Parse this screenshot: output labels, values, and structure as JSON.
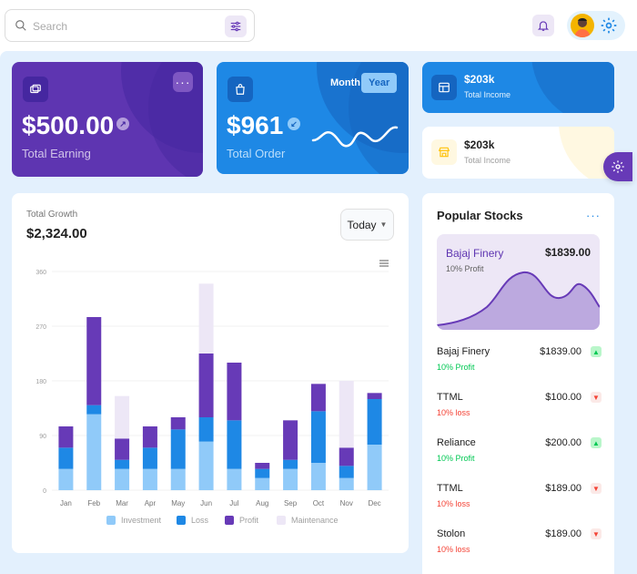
{
  "search": {
    "placeholder": "Search"
  },
  "earning": {
    "amount": "$500.00",
    "label": "Total Earning"
  },
  "order": {
    "amount": "$961",
    "label": "Total Order",
    "toggle_month": "Month",
    "toggle_year": "Year",
    "active": "Year"
  },
  "income_primary": {
    "amount": "$203k",
    "label": "Total Income"
  },
  "income_secondary": {
    "amount": "$203k",
    "label": "Total Income"
  },
  "growth": {
    "title": "Total Growth",
    "amount": "$2,324.00",
    "period_select": "Today"
  },
  "chart_data": {
    "type": "bar",
    "stacked": true,
    "categories": [
      "Jan",
      "Feb",
      "Mar",
      "Apr",
      "May",
      "Jun",
      "Jul",
      "Aug",
      "Sep",
      "Oct",
      "Nov",
      "Dec"
    ],
    "ylim": [
      0,
      360
    ],
    "yticks": [
      0,
      90,
      180,
      270,
      360
    ],
    "series": [
      {
        "name": "Investment",
        "color": "#90caf9",
        "values": [
          35,
          125,
          35,
          35,
          35,
          80,
          35,
          20,
          35,
          45,
          20,
          75
        ]
      },
      {
        "name": "Loss",
        "color": "#1e88e5",
        "values": [
          35,
          15,
          15,
          35,
          65,
          40,
          80,
          15,
          15,
          85,
          20,
          75
        ]
      },
      {
        "name": "Profit",
        "color": "#673ab7",
        "values": [
          35,
          145,
          35,
          35,
          20,
          105,
          95,
          10,
          65,
          45,
          30,
          10
        ]
      },
      {
        "name": "Maintenance",
        "color": "#ede7f6",
        "values": [
          0,
          0,
          70,
          0,
          0,
          115,
          0,
          0,
          0,
          0,
          110,
          0
        ]
      }
    ]
  },
  "stocks": {
    "title": "Popular Stocks",
    "hero": {
      "name": "Bajaj Finery",
      "price": "$1839.00",
      "sub": "10% Profit"
    },
    "rows": [
      {
        "name": "Bajaj Finery",
        "price": "$1839.00",
        "change": "10% Profit",
        "trend": "up"
      },
      {
        "name": "TTML",
        "price": "$100.00",
        "change": "10% loss",
        "trend": "down"
      },
      {
        "name": "Reliance",
        "price": "$200.00",
        "change": "10% Profit",
        "trend": "up"
      },
      {
        "name": "TTML",
        "price": "$189.00",
        "change": "10% loss",
        "trend": "down"
      },
      {
        "name": "Stolon",
        "price": "$189.00",
        "change": "10% loss",
        "trend": "down"
      }
    ]
  },
  "colors": {
    "purple": "#5e35b1",
    "blue": "#1e88e5",
    "panel_bg": "#e3f0fd",
    "profit": "#00c853",
    "loss": "#f44336"
  }
}
